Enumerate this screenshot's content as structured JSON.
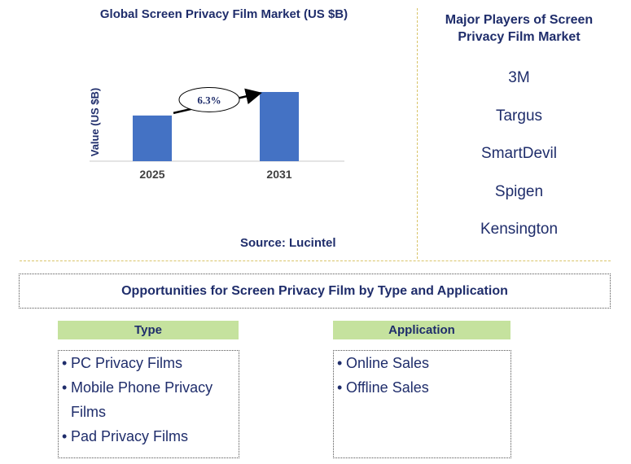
{
  "chart_data": {
    "type": "bar",
    "title": "Global Screen Privacy Film Market (US $B)",
    "ylabel": "Value (US $B)",
    "categories": [
      "2025",
      "2031"
    ],
    "values": [
      0.66,
      1.0
    ],
    "bar_color": "#4472c4",
    "annotation": "6.3%",
    "source": "Source: Lucintel"
  },
  "players": {
    "title": "Major Players of Screen Privacy Film Market",
    "items": [
      "3M",
      "Targus",
      "SmartDevil",
      "Spigen",
      "Kensington"
    ]
  },
  "opportunities": {
    "title": "Opportunities for Screen Privacy Film by Type and Application",
    "type": {
      "header": "Type",
      "items": [
        "PC Privacy Films",
        "Mobile Phone Privacy Films",
        "Pad Privacy Films"
      ]
    },
    "application": {
      "header": "Application",
      "items": [
        "Online Sales",
        "Offline Sales"
      ]
    }
  },
  "colors": {
    "text": "#1f2d6b",
    "header_bg": "#c5e29e",
    "divider": "#d9c46a"
  }
}
